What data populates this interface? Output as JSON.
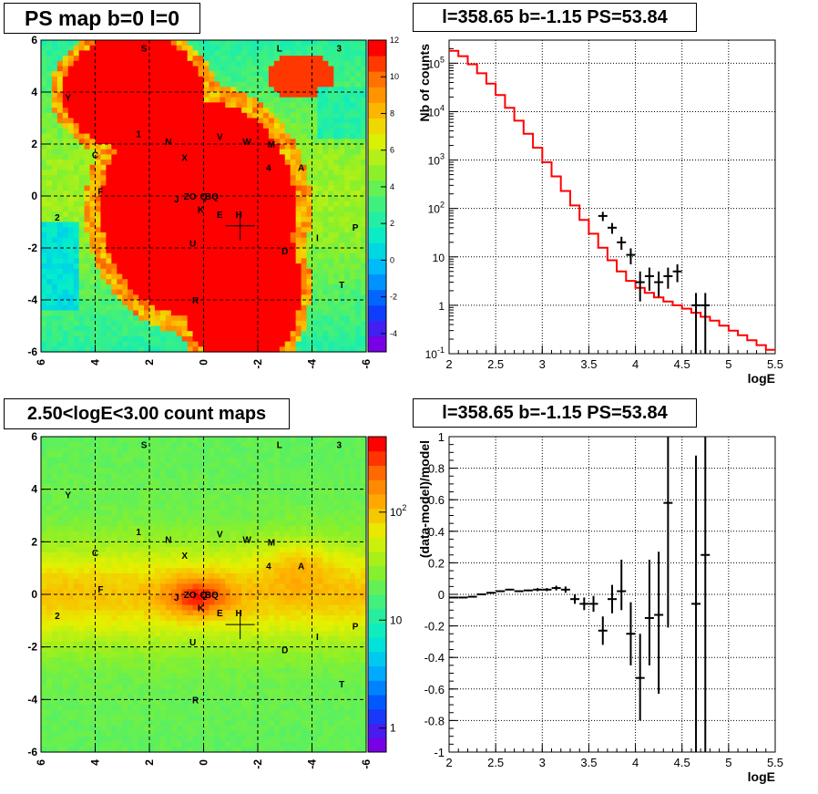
{
  "chart_data": [
    {
      "type": "heatmap",
      "title": "PS map b=0 l=0",
      "xlim": [
        6,
        -6
      ],
      "ylim": [
        -6,
        6
      ],
      "xticks": [
        "6",
        "4",
        "2",
        "0",
        "-2",
        "-4",
        "-6"
      ],
      "yticks": [
        "6",
        "4",
        "2",
        "0",
        "-2",
        "-4",
        "-6"
      ],
      "colorbar": {
        "min": -5,
        "max": 12,
        "ticks": [
          "12",
          "10",
          "8",
          "6",
          "4",
          "2",
          "0",
          "-2",
          "-4"
        ]
      },
      "grid": true,
      "labels": [
        {
          "text": "S",
          "x": 2.2,
          "y": 5.7
        },
        {
          "text": "L",
          "x": -2.8,
          "y": 5.7
        },
        {
          "text": "3",
          "x": -5.0,
          "y": 5.7
        },
        {
          "text": "Y",
          "x": 5.0,
          "y": 3.8
        },
        {
          "text": "1",
          "x": 2.4,
          "y": 2.4
        },
        {
          "text": "N",
          "x": 1.3,
          "y": 2.1
        },
        {
          "text": "V",
          "x": -0.6,
          "y": 2.3
        },
        {
          "text": "W",
          "x": -1.6,
          "y": 2.1
        },
        {
          "text": "M",
          "x": -2.5,
          "y": 2.0
        },
        {
          "text": "C",
          "x": 4.0,
          "y": 1.6
        },
        {
          "text": "X",
          "x": 0.7,
          "y": 1.5
        },
        {
          "text": "4",
          "x": -2.4,
          "y": 1.1
        },
        {
          "text": "A",
          "x": -3.6,
          "y": 1.1
        },
        {
          "text": "F",
          "x": 3.8,
          "y": 0.2
        },
        {
          "text": "J",
          "x": 1.0,
          "y": -0.1
        },
        {
          "text": "ZO",
          "x": 0.5,
          "y": 0.0
        },
        {
          "text": "Q",
          "x": 0.0,
          "y": 0.0
        },
        {
          "text": "BQ",
          "x": -0.3,
          "y": 0.0
        },
        {
          "text": "K",
          "x": 0.1,
          "y": -0.5
        },
        {
          "text": "2",
          "x": 5.4,
          "y": -0.8
        },
        {
          "text": "E",
          "x": -0.6,
          "y": -0.7
        },
        {
          "text": "H",
          "x": -1.3,
          "y": -0.7
        },
        {
          "text": "P",
          "x": -5.6,
          "y": -1.2
        },
        {
          "text": "I",
          "x": -4.2,
          "y": -1.6
        },
        {
          "text": "U",
          "x": 0.4,
          "y": -1.8
        },
        {
          "text": "D",
          "x": -3.0,
          "y": -2.1
        },
        {
          "text": "T",
          "x": -5.1,
          "y": -3.4
        },
        {
          "text": "R",
          "x": 0.3,
          "y": -4.0
        }
      ],
      "marker": {
        "l": -1.35,
        "b": -1.15
      }
    },
    {
      "type": "line",
      "title": "l=358.65 b=-1.15 PS=53.84",
      "xlabel": "logE",
      "ylabel": "Nb of counts",
      "xlim": [
        2,
        5.5
      ],
      "ylim": [
        0.1,
        300000
      ],
      "yscale": "log",
      "xticks": [
        "2",
        "2.5",
        "3",
        "3.5",
        "4",
        "4.5",
        "5",
        "5.5"
      ],
      "yticks": [
        "10^{-1}",
        "1",
        "10",
        "10^{2}",
        "10^{3}",
        "10^{4}",
        "10^{5}"
      ],
      "grid": true,
      "series": [
        {
          "kind": "model-histogram",
          "color": "#ff0000",
          "edges": [
            2,
            2.1,
            2.2,
            2.3,
            2.4,
            2.5,
            2.6,
            2.7,
            2.8,
            2.9,
            3.0,
            3.1,
            3.2,
            3.3,
            3.4,
            3.5,
            3.6,
            3.7,
            3.8,
            3.9,
            4.0,
            4.1,
            4.2,
            4.3,
            4.4,
            4.5,
            4.6,
            4.7,
            4.8,
            4.9,
            5.0,
            5.1,
            5.2,
            5.3,
            5.4,
            5.5
          ],
          "values": [
            180000,
            140000,
            95000,
            62000,
            38000,
            22000,
            12000,
            6500,
            3500,
            1800,
            900,
            460,
            230,
            115,
            58,
            30,
            15.5,
            8.5,
            5,
            3.2,
            2.3,
            1.8,
            1.45,
            1.2,
            1.0,
            0.85,
            0.7,
            0.58,
            0.48,
            0.38,
            0.3,
            0.24,
            0.19,
            0.15,
            0.12
          ]
        },
        {
          "kind": "data-points",
          "color": "#000000",
          "x": [
            3.65,
            3.75,
            3.85,
            3.95,
            4.05,
            4.15,
            4.25,
            4.35,
            4.45,
            4.65,
            4.75
          ],
          "y": [
            70,
            40,
            20,
            11,
            3,
            4,
            3,
            4,
            5,
            1,
            1
          ],
          "ylow": [
            55,
            30,
            14,
            7,
            1.2,
            2,
            1.5,
            2.2,
            3,
            0.1,
            0.1
          ],
          "yhigh": [
            85,
            50,
            26,
            15,
            5,
            6,
            5,
            6,
            7,
            1.8,
            1.8
          ]
        }
      ]
    },
    {
      "type": "heatmap",
      "title": "2.50<logE<3.00 count maps",
      "xlim": [
        6,
        -6
      ],
      "ylim": [
        -6,
        6
      ],
      "xticks": [
        "6",
        "4",
        "2",
        "0",
        "-2",
        "-4",
        "-6"
      ],
      "yticks": [
        "6",
        "4",
        "2",
        "0",
        "-2",
        "-4",
        "-6"
      ],
      "colorbar": {
        "scale": "log",
        "min": 0.6,
        "max": 500,
        "ticks": [
          "10^{2}",
          "10",
          "1"
        ]
      },
      "grid": true
    },
    {
      "type": "scatter",
      "title": "l=358.65 b=-1.15 PS=53.84",
      "xlabel": "logE",
      "ylabel": "(data-model)/model",
      "xlim": [
        2,
        5.5
      ],
      "ylim": [
        -1,
        1
      ],
      "xticks": [
        "2",
        "2.5",
        "3",
        "3.5",
        "4",
        "4.5",
        "5",
        "5.5"
      ],
      "yticks": [
        "1",
        "0.8",
        "0.6",
        "0.4",
        "0.2",
        "0",
        "-0.2",
        "-0.4",
        "-0.6",
        "-0.8",
        "-1"
      ],
      "grid": true,
      "series": [
        {
          "color": "#000000",
          "x": [
            2.05,
            2.15,
            2.25,
            2.35,
            2.45,
            2.55,
            2.65,
            2.75,
            2.85,
            2.95,
            3.05,
            3.15,
            3.25,
            3.35,
            3.45,
            3.55,
            3.65,
            3.75,
            3.85,
            3.95,
            4.05,
            4.15,
            4.25,
            4.35,
            4.65,
            4.75
          ],
          "y": [
            -0.02,
            -0.02,
            -0.015,
            0.0,
            0.01,
            0.02,
            0.03,
            0.02,
            0.025,
            0.03,
            0.03,
            0.04,
            0.03,
            -0.03,
            -0.06,
            -0.06,
            -0.23,
            -0.03,
            0.02,
            -0.25,
            -0.53,
            -0.15,
            -0.13,
            0.58,
            -0.06,
            0.25
          ],
          "ylow": [
            -0.025,
            -0.025,
            -0.02,
            -0.005,
            0.005,
            0.015,
            0.025,
            0.015,
            0.02,
            0.02,
            0.02,
            0.025,
            0.01,
            -0.06,
            -0.1,
            -0.11,
            -0.32,
            -0.12,
            -0.1,
            -0.45,
            -0.8,
            -0.45,
            -0.63,
            -0.21,
            -1.0,
            -1.0
          ],
          "yhigh": [
            -0.015,
            -0.015,
            -0.01,
            0.005,
            0.015,
            0.025,
            0.035,
            0.025,
            0.03,
            0.04,
            0.04,
            0.055,
            0.05,
            0.0,
            -0.02,
            -0.01,
            -0.14,
            0.06,
            0.22,
            -0.05,
            -0.25,
            0.22,
            0.27,
            1.0,
            0.88,
            1.0
          ]
        }
      ]
    }
  ]
}
